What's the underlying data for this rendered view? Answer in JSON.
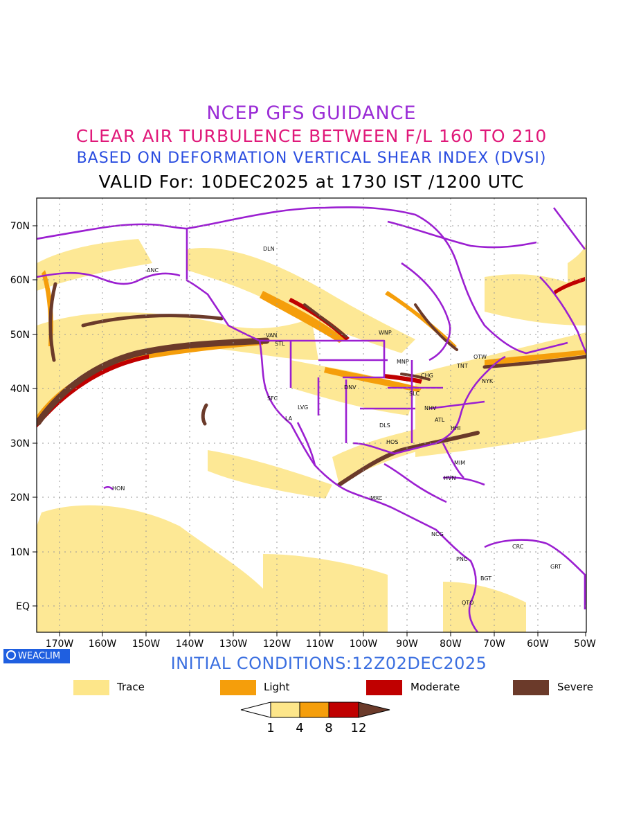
{
  "titles": {
    "line1": "NCEP GFS GUIDANCE",
    "line2": "CLEAR AIR TURBULENCE BETWEEN F/L 160 TO 210",
    "line3": "BASED ON DEFORMATION VERTICAL SHEAR INDEX (DVSI)",
    "line4": "VALID For: 10DEC2025 at 1730 IST /1200 UTC"
  },
  "axes": {
    "lat_labels": [
      "70N",
      "60N",
      "50N",
      "40N",
      "30N",
      "20N",
      "10N",
      "EQ"
    ],
    "lon_labels": [
      "170W",
      "160W",
      "150W",
      "140W",
      "130W",
      "120W",
      "110W",
      "100W",
      "90W",
      "80W",
      "70W",
      "60W",
      "50W"
    ]
  },
  "cities": [
    "ANC",
    "DLN",
    "VAN",
    "STL",
    "WNP",
    "MNP",
    "OTW",
    "TNT",
    "NYK",
    "CHG",
    "SLC",
    "DNV",
    "SFC",
    "LVG",
    "LA",
    "DLS",
    "NHV",
    "ATL",
    "HHI",
    "HOS",
    "MIM",
    "HVN",
    "HON",
    "MXC",
    "NCG",
    "CRC",
    "GRT",
    "PNC",
    "BGT",
    "QTO"
  ],
  "badge": "WEACLIM",
  "initial_conditions": "INITIAL CONDITIONS:12Z02DEC2025",
  "legend": [
    {
      "label": "Trace",
      "color": "#fde68a"
    },
    {
      "label": "Light",
      "color": "#f59e0b"
    },
    {
      "label": "Moderate",
      "color": "#c00000"
    },
    {
      "label": "Severe",
      "color": "#6b3a2a"
    }
  ],
  "colorbar": {
    "ticks": [
      "1",
      "4",
      "8",
      "12"
    ],
    "colors": [
      "#ffffff",
      "#fde68a",
      "#f59e0b",
      "#c00000",
      "#6b3a2a"
    ]
  },
  "colors": {
    "coastline": "#9b1fd1",
    "grid": "#999999"
  }
}
